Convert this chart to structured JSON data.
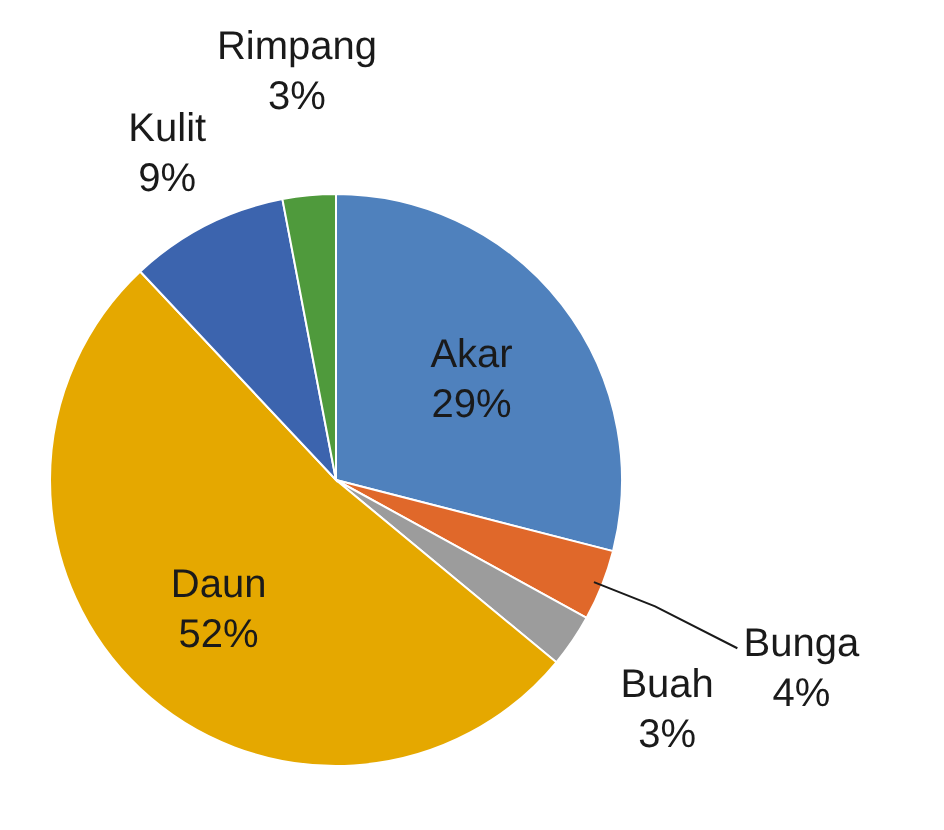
{
  "chart_data": {
    "type": "pie",
    "categories": [
      "Akar",
      "Bunga",
      "Buah",
      "Daun",
      "Kulit",
      "Rimpang"
    ],
    "values": [
      29,
      4,
      3,
      52,
      9,
      3
    ],
    "colors": [
      "#4f81bd",
      "#e0682a",
      "#9c9c9c",
      "#e5a800",
      "#3c64ae",
      "#4f9a3c"
    ],
    "value_labels": [
      "29%",
      "4%",
      "3%",
      "52%",
      "9%",
      "3%"
    ]
  }
}
